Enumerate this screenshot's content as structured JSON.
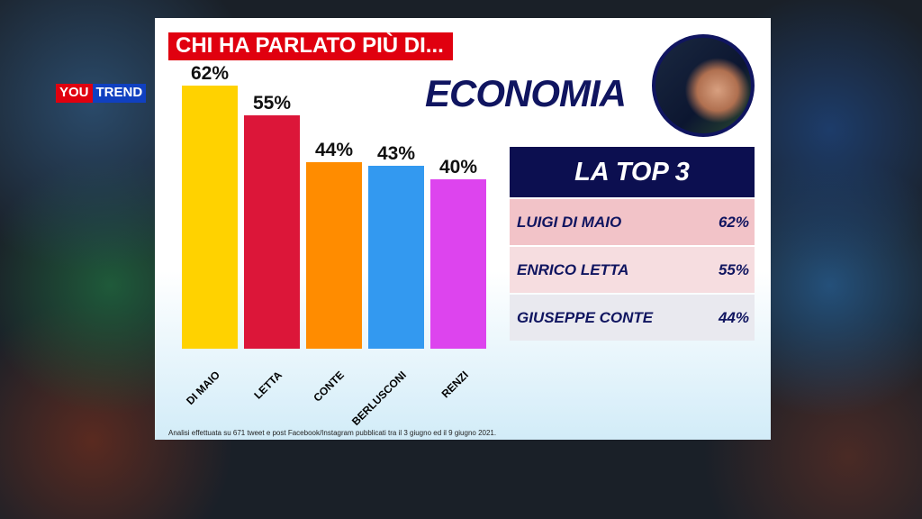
{
  "logo": {
    "you": "YOU",
    "trend": "TREND"
  },
  "title": "CHI HA PARLATO PIÙ DI...",
  "topic": "ECONOMIA",
  "chart_data": {
    "type": "bar",
    "categories": [
      "DI MAIO",
      "LETTA",
      "CONTE",
      "BERLUSCONI",
      "RENZI"
    ],
    "values": [
      62,
      55,
      44,
      43,
      40
    ],
    "labels": [
      "62%",
      "55%",
      "44%",
      "43%",
      "40%"
    ],
    "colors": [
      "#ffd200",
      "#dc1639",
      "#ff8c00",
      "#3399f0",
      "#dd44ee"
    ],
    "ylim": [
      0,
      62
    ]
  },
  "top3": {
    "header": "LA TOP 3",
    "rows": [
      {
        "name": "LUIGI DI MAIO",
        "value": "62%"
      },
      {
        "name": "ENRICO LETTA",
        "value": "55%"
      },
      {
        "name": "GIUSEPPE CONTE",
        "value": "44%"
      }
    ]
  },
  "note": "Analisi effettuata su 671 tweet e post Facebook/Instagram pubblicati tra il 3 giugno ed il 9 giugno 2021."
}
